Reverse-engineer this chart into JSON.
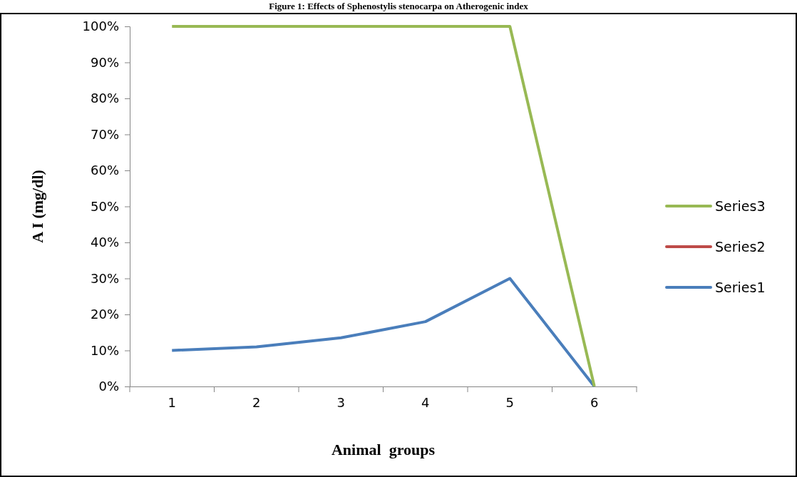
{
  "chart_data": {
    "type": "line",
    "title": "Figure 1: Effects of Sphenostylis stenocarpa on Atherogenic index",
    "xlabel": "Animal  groups",
    "ylabel": "A I (mg/dl)",
    "categories": [
      "1",
      "2",
      "3",
      "4",
      "5",
      "6"
    ],
    "series": [
      {
        "name": "Series1",
        "color": "#4a7ebb",
        "values": [
          10,
          11,
          13.5,
          18,
          30,
          0
        ]
      },
      {
        "name": "Series2",
        "color": "#be4b48",
        "values": [
          null,
          null,
          null,
          null,
          null,
          null
        ]
      },
      {
        "name": "Series3",
        "color": "#98b954",
        "values": [
          100,
          100,
          100,
          100,
          100,
          0
        ]
      }
    ],
    "ylim": [
      0,
      100
    ],
    "yticks": [
      {
        "value": 0,
        "label": "0%"
      },
      {
        "value": 10,
        "label": "10%"
      },
      {
        "value": 20,
        "label": "20%"
      },
      {
        "value": 30,
        "label": "30%"
      },
      {
        "value": 40,
        "label": "40%"
      },
      {
        "value": 50,
        "label": "50%"
      },
      {
        "value": 60,
        "label": "60%"
      },
      {
        "value": 70,
        "label": "70%"
      },
      {
        "value": 80,
        "label": "80%"
      },
      {
        "value": 90,
        "label": "90%"
      },
      {
        "value": 100,
        "label": "100%"
      }
    ],
    "grid": false,
    "legend": "right",
    "marker": "none",
    "line_style": "solid"
  }
}
